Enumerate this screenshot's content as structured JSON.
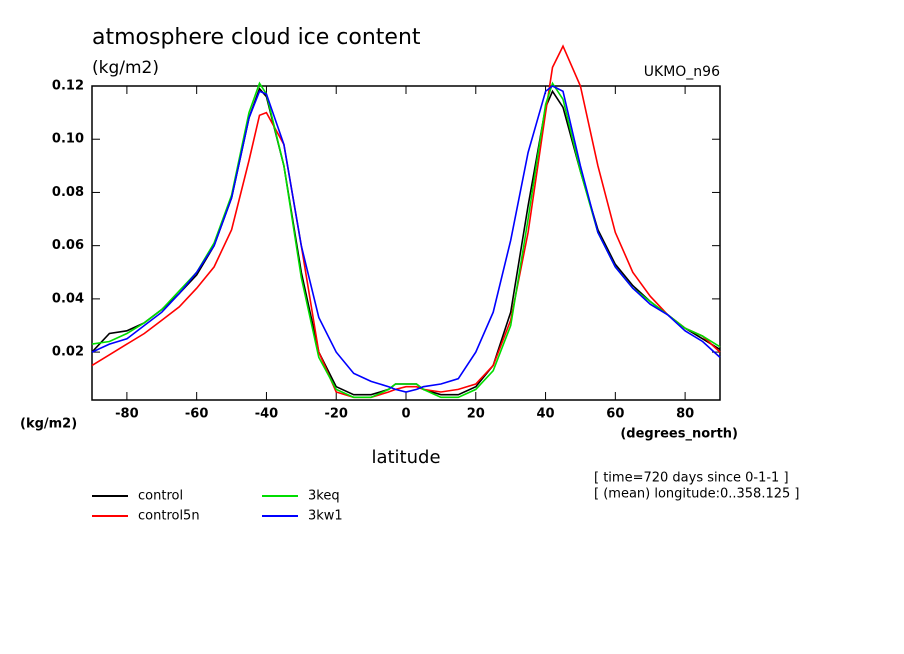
{
  "chart_data": {
    "type": "line",
    "title": "atmosphere cloud ice content",
    "subtitle": "(kg/m2)",
    "source": "UKMO_n96",
    "ylabel": "(kg/m2)",
    "xunits": "(degrees_north)",
    "xlabel": "latitude",
    "annotations": [
      "[ time=720 days since 0-1-1 ]",
      "[ (mean) longitude:0..358.125 ]"
    ],
    "x": [
      -90,
      -85,
      -80,
      -75,
      -70,
      -65,
      -60,
      -55,
      -50,
      -45,
      -42,
      -40,
      -35,
      -30,
      -25,
      -20,
      -15,
      -10,
      -5,
      -3,
      0,
      3,
      5,
      10,
      15,
      20,
      25,
      30,
      35,
      40,
      42,
      45,
      50,
      55,
      60,
      65,
      70,
      75,
      80,
      85,
      90
    ],
    "series": [
      {
        "name": "control",
        "color": "#000000",
        "values": [
          0.02,
          0.027,
          0.028,
          0.031,
          0.036,
          0.042,
          0.049,
          0.06,
          0.078,
          0.108,
          0.119,
          0.116,
          0.09,
          0.05,
          0.02,
          0.007,
          0.004,
          0.004,
          0.006,
          0.008,
          0.008,
          0.008,
          0.006,
          0.004,
          0.004,
          0.007,
          0.015,
          0.035,
          0.075,
          0.112,
          0.118,
          0.112,
          0.088,
          0.066,
          0.053,
          0.045,
          0.039,
          0.034,
          0.029,
          0.025,
          0.021
        ]
      },
      {
        "name": "control5n",
        "color": "#ff0000",
        "values": [
          0.015,
          0.019,
          0.023,
          0.027,
          0.032,
          0.037,
          0.044,
          0.052,
          0.066,
          0.092,
          0.109,
          0.11,
          0.098,
          0.06,
          0.02,
          0.005,
          0.003,
          0.003,
          0.005,
          0.006,
          0.007,
          0.007,
          0.006,
          0.005,
          0.006,
          0.008,
          0.015,
          0.032,
          0.065,
          0.11,
          0.127,
          0.135,
          0.12,
          0.09,
          0.065,
          0.05,
          0.041,
          0.034,
          0.029,
          0.026,
          0.02
        ]
      },
      {
        "name": "3keq",
        "color": "#00dd00",
        "values": [
          0.023,
          0.024,
          0.027,
          0.031,
          0.036,
          0.043,
          0.05,
          0.061,
          0.079,
          0.11,
          0.121,
          0.117,
          0.09,
          0.048,
          0.018,
          0.006,
          0.003,
          0.003,
          0.006,
          0.008,
          0.008,
          0.008,
          0.006,
          0.003,
          0.003,
          0.006,
          0.013,
          0.03,
          0.07,
          0.113,
          0.121,
          0.115,
          0.088,
          0.065,
          0.052,
          0.044,
          0.039,
          0.034,
          0.029,
          0.026,
          0.022
        ]
      },
      {
        "name": "3kw1",
        "color": "#0000ff",
        "values": [
          0.02,
          0.023,
          0.025,
          0.03,
          0.035,
          0.042,
          0.05,
          0.06,
          0.078,
          0.108,
          0.118,
          0.117,
          0.098,
          0.06,
          0.033,
          0.02,
          0.012,
          0.009,
          0.007,
          0.006,
          0.005,
          0.006,
          0.007,
          0.008,
          0.01,
          0.02,
          0.035,
          0.062,
          0.095,
          0.118,
          0.12,
          0.118,
          0.09,
          0.065,
          0.052,
          0.044,
          0.038,
          0.034,
          0.028,
          0.024,
          0.018
        ]
      }
    ],
    "xlim": [
      -90,
      90
    ],
    "xticks": [
      -80,
      -60,
      -40,
      -20,
      0,
      20,
      40,
      60,
      80
    ],
    "ylim": [
      0.002,
      0.12
    ],
    "yticks": [
      0.02,
      0.04,
      0.06,
      0.08,
      {
        "value": 0.1,
        "label": "0.10"
      },
      0.12
    ]
  }
}
